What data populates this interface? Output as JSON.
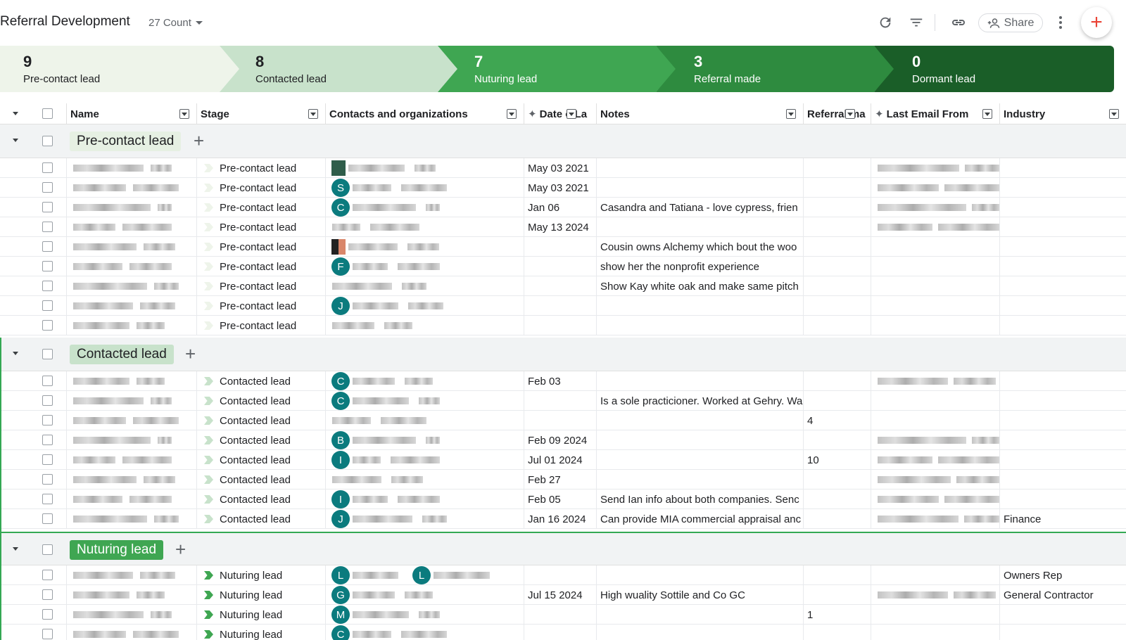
{
  "header": {
    "title": "Referral Development",
    "count_label": "27 Count",
    "share_label": "Share",
    "icons": [
      "refresh-icon",
      "filter-icon",
      "link-icon",
      "add-person-icon",
      "more-vert-icon",
      "plus-icon"
    ]
  },
  "pipeline": [
    {
      "count": "9",
      "label": "Pre-contact lead"
    },
    {
      "count": "8",
      "label": "Contacted lead"
    },
    {
      "count": "7",
      "label": "Nuturing lead"
    },
    {
      "count": "3",
      "label": "Referral made"
    },
    {
      "count": "0",
      "label": "Dormant lead"
    }
  ],
  "columns": {
    "name": "Name",
    "stage": "Stage",
    "contacts": "Contacts and organizations",
    "date": "Date o La",
    "notes": "Notes",
    "referral": "Referral ma",
    "last_email": "Last Email From",
    "industry": "Industry"
  },
  "groups": {
    "precontact": {
      "label": "Pre-contact lead",
      "rows": [
        {
          "stage": "Pre-contact lead",
          "avatar": "",
          "date": "May 03 2021",
          "notes": "",
          "referral": "",
          "industry": ""
        },
        {
          "stage": "Pre-contact lead",
          "avatar": "S",
          "date": "May 03 2021",
          "notes": "",
          "referral": "",
          "industry": ""
        },
        {
          "stage": "Pre-contact lead",
          "avatar": "C",
          "date": "Jan 06",
          "notes": "Casandra and Tatiana - love cypress, frien",
          "referral": "",
          "industry": ""
        },
        {
          "stage": "Pre-contact lead",
          "avatar": "",
          "date": "May 13 2024",
          "notes": "",
          "referral": "",
          "industry": ""
        },
        {
          "stage": "Pre-contact lead",
          "avatar": "",
          "date": "",
          "notes": "Cousin owns Alchemy which bout the woo",
          "referral": "",
          "industry": ""
        },
        {
          "stage": "Pre-contact lead",
          "avatar": "F",
          "date": "",
          "notes": "show her the nonprofit experience",
          "referral": "",
          "industry": ""
        },
        {
          "stage": "Pre-contact lead",
          "avatar": "",
          "date": "",
          "notes": "Show Kay white oak and make same pitch",
          "referral": "",
          "industry": ""
        },
        {
          "stage": "Pre-contact lead",
          "avatar": "J",
          "date": "",
          "notes": "",
          "referral": "",
          "industry": ""
        },
        {
          "stage": "Pre-contact lead",
          "avatar": "",
          "date": "",
          "notes": "",
          "referral": "",
          "industry": ""
        }
      ]
    },
    "contacted": {
      "label": "Contacted lead",
      "rows": [
        {
          "stage": "Contacted lead",
          "avatar": "C",
          "date": "Feb 03",
          "notes": "",
          "referral": "",
          "industry": ""
        },
        {
          "stage": "Contacted lead",
          "avatar": "C",
          "date": "",
          "notes": "Is a sole practicioner. Worked at Gehry. Wa",
          "referral": "",
          "industry": ""
        },
        {
          "stage": "Contacted lead",
          "avatar": "",
          "date": "",
          "notes": "",
          "referral": "4",
          "industry": ""
        },
        {
          "stage": "Contacted lead",
          "avatar": "B",
          "date": "Feb 09 2024",
          "notes": "",
          "referral": "",
          "industry": ""
        },
        {
          "stage": "Contacted lead",
          "avatar": "I",
          "date": "Jul 01 2024",
          "notes": "",
          "referral": "10",
          "industry": ""
        },
        {
          "stage": "Contacted lead",
          "avatar": "",
          "date": "Feb 27",
          "notes": "",
          "referral": "",
          "industry": ""
        },
        {
          "stage": "Contacted lead",
          "avatar": "I",
          "date": "Feb 05",
          "notes": "Send Ian info about both companies. Senc",
          "referral": "",
          "industry": ""
        },
        {
          "stage": "Contacted lead",
          "avatar": "J",
          "date": "Jan 16 2024",
          "notes": "Can provide MIA commercial appraisal anc",
          "referral": "",
          "industry": "Finance"
        }
      ]
    },
    "nuturing": {
      "label": "Nuturing lead",
      "rows": [
        {
          "stage": "Nuturing lead",
          "avatar": "L",
          "avatar2": "L",
          "date": "",
          "notes": "",
          "referral": "",
          "industry": "Owners Rep"
        },
        {
          "stage": "Nuturing lead",
          "avatar": "G",
          "date": "Jul 15 2024",
          "notes": "High wuality Sottile and Co GC",
          "referral": "",
          "industry": "General Contractor"
        },
        {
          "stage": "Nuturing lead",
          "avatar": "M",
          "date": "",
          "notes": "",
          "referral": "1",
          "industry": ""
        },
        {
          "stage": "Nuturing lead",
          "avatar": "C",
          "date": "",
          "notes": "",
          "referral": "",
          "industry": ""
        }
      ]
    }
  },
  "colors": {
    "stage1": "#eef4ea",
    "stage2": "#c8e2cb",
    "stage3": "#3fa652",
    "stage4": "#2e8b3f",
    "stage5": "#1a5e28",
    "avatar": "#0b7b7e",
    "accent_green": "#34a853"
  }
}
